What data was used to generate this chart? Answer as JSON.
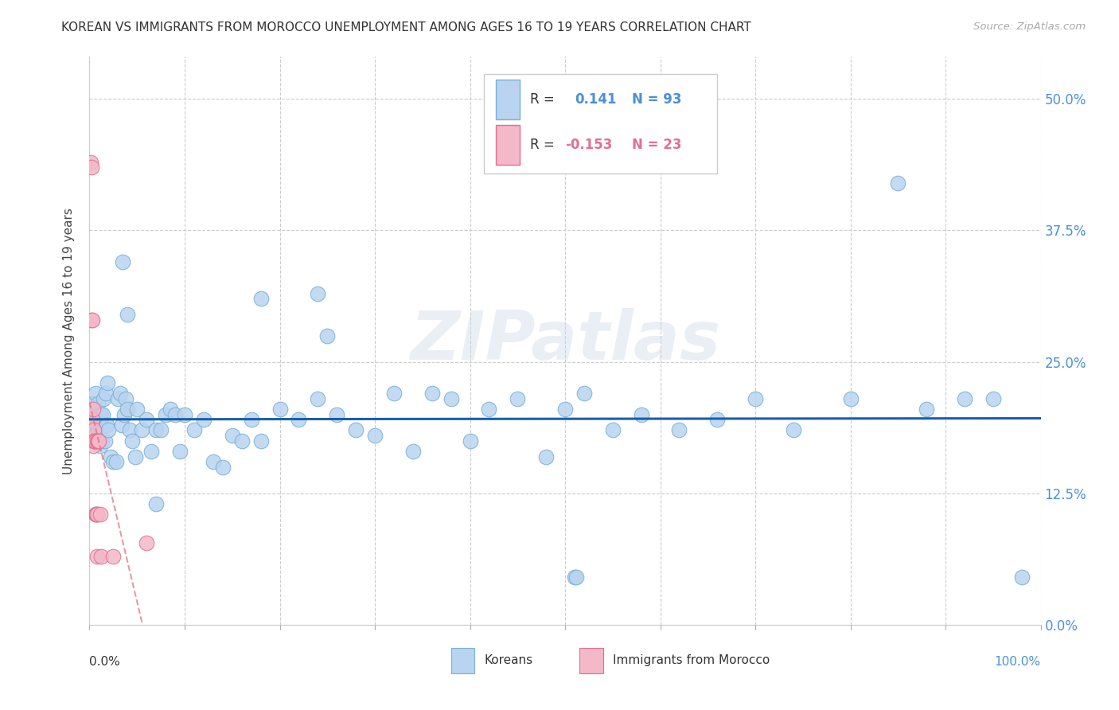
{
  "title": "KOREAN VS IMMIGRANTS FROM MOROCCO UNEMPLOYMENT AMONG AGES 16 TO 19 YEARS CORRELATION CHART",
  "source": "Source: ZipAtlas.com",
  "ylabel": "Unemployment Among Ages 16 to 19 years",
  "ytick_labels": [
    "0.0%",
    "12.5%",
    "25.0%",
    "37.5%",
    "50.0%"
  ],
  "ytick_values": [
    0.0,
    0.125,
    0.25,
    0.375,
    0.5
  ],
  "xlim": [
    0.0,
    1.0
  ],
  "ylim": [
    0.0,
    0.54
  ],
  "watermark": "ZIPatlas",
  "korean_R": 0.141,
  "korean_N": 93,
  "morocco_R": -0.153,
  "morocco_N": 23,
  "korean_color": "#b8d4f0",
  "korean_edge": "#7ab0d4",
  "morocco_color": "#f4b8c8",
  "morocco_edge": "#e07090",
  "trend_korean_color": "#1a5fa8",
  "trend_morocco_color": "#d87080",
  "background_color": "#ffffff",
  "grid_color": "#cccccc",
  "korean_x": [
    0.003,
    0.004,
    0.005,
    0.005,
    0.006,
    0.006,
    0.007,
    0.007,
    0.008,
    0.008,
    0.009,
    0.009,
    0.01,
    0.01,
    0.011,
    0.011,
    0.012,
    0.012,
    0.013,
    0.014,
    0.015,
    0.016,
    0.017,
    0.018,
    0.019,
    0.02,
    0.022,
    0.025,
    0.028,
    0.03,
    0.032,
    0.034,
    0.036,
    0.038,
    0.04,
    0.042,
    0.045,
    0.048,
    0.05,
    0.055,
    0.06,
    0.065,
    0.07,
    0.075,
    0.08,
    0.085,
    0.09,
    0.095,
    0.1,
    0.11,
    0.12,
    0.13,
    0.14,
    0.15,
    0.16,
    0.17,
    0.18,
    0.2,
    0.22,
    0.24,
    0.26,
    0.28,
    0.3,
    0.32,
    0.34,
    0.36,
    0.38,
    0.4,
    0.42,
    0.45,
    0.48,
    0.5,
    0.52,
    0.55,
    0.58,
    0.62,
    0.66,
    0.7,
    0.74,
    0.8,
    0.85,
    0.88,
    0.92,
    0.95,
    0.98,
    0.25,
    0.51,
    0.512,
    0.24,
    0.18,
    0.07,
    0.04,
    0.035
  ],
  "korean_y": [
    0.21,
    0.19,
    0.195,
    0.18,
    0.22,
    0.19,
    0.175,
    0.2,
    0.185,
    0.19,
    0.21,
    0.175,
    0.185,
    0.2,
    0.195,
    0.17,
    0.2,
    0.185,
    0.175,
    0.2,
    0.215,
    0.175,
    0.22,
    0.19,
    0.23,
    0.185,
    0.16,
    0.155,
    0.155,
    0.215,
    0.22,
    0.19,
    0.2,
    0.215,
    0.205,
    0.185,
    0.175,
    0.16,
    0.205,
    0.185,
    0.195,
    0.165,
    0.185,
    0.185,
    0.2,
    0.205,
    0.2,
    0.165,
    0.2,
    0.185,
    0.195,
    0.155,
    0.15,
    0.18,
    0.175,
    0.195,
    0.175,
    0.205,
    0.195,
    0.215,
    0.2,
    0.185,
    0.18,
    0.22,
    0.165,
    0.22,
    0.215,
    0.175,
    0.205,
    0.215,
    0.16,
    0.205,
    0.22,
    0.185,
    0.2,
    0.185,
    0.195,
    0.215,
    0.185,
    0.215,
    0.42,
    0.205,
    0.215,
    0.215,
    0.045,
    0.275,
    0.045,
    0.045,
    0.315,
    0.31,
    0.115,
    0.295,
    0.345
  ],
  "morocco_x": [
    0.001,
    0.002,
    0.002,
    0.003,
    0.003,
    0.004,
    0.004,
    0.005,
    0.005,
    0.005,
    0.006,
    0.006,
    0.007,
    0.007,
    0.008,
    0.008,
    0.008,
    0.009,
    0.01,
    0.011,
    0.012,
    0.025,
    0.06
  ],
  "morocco_y": [
    0.44,
    0.435,
    0.29,
    0.29,
    0.195,
    0.205,
    0.17,
    0.185,
    0.175,
    0.175,
    0.175,
    0.105,
    0.105,
    0.105,
    0.105,
    0.175,
    0.065,
    0.175,
    0.175,
    0.105,
    0.065,
    0.065,
    0.078
  ]
}
